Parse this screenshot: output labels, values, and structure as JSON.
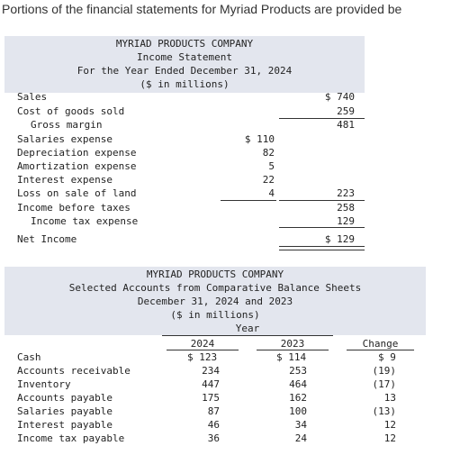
{
  "intro": "Portions of the financial statements for Myriad Products are provided be",
  "income": {
    "header": [
      "MYRIAD PRODUCTS COMPANY",
      "Income Statement",
      "For the Year Ended December 31, 2024",
      "($ in millions)"
    ],
    "rows": [
      {
        "label": "Sales",
        "col1": "",
        "col2": "$ 740"
      },
      {
        "label": "Cost of goods sold",
        "col1": "",
        "col2": "259"
      },
      {
        "label": "Gross margin",
        "col1": "",
        "col2": "481"
      },
      {
        "label": "Salaries expense",
        "col1": "$ 110",
        "col2": ""
      },
      {
        "label": "Depreciation expense",
        "col1": "82",
        "col2": ""
      },
      {
        "label": "Amortization expense",
        "col1": "5",
        "col2": ""
      },
      {
        "label": "Interest expense",
        "col1": "22",
        "col2": ""
      },
      {
        "label": "Loss on sale of land",
        "col1": "4",
        "col2": "223"
      },
      {
        "label": "Income before taxes",
        "col1": "",
        "col2": "258"
      },
      {
        "label": "Income tax expense",
        "col1": "",
        "col2": "129"
      },
      {
        "label": "Net Income",
        "col1": "",
        "col2": "$ 129"
      }
    ]
  },
  "balance": {
    "header": [
      "MYRIAD PRODUCTS COMPANY",
      "Selected Accounts from Comparative Balance Sheets",
      "December 31, 2024 and 2023",
      "($ in millions)",
      "Year"
    ],
    "columns": [
      "2024",
      "2023",
      "Change"
    ],
    "rows": [
      {
        "label": "Cash",
        "y2024": "$ 123",
        "y2023": "$ 114",
        "change": "$ 9"
      },
      {
        "label": "Accounts receivable",
        "y2024": "234",
        "y2023": "253",
        "change": "(19)"
      },
      {
        "label": "Inventory",
        "y2024": "447",
        "y2023": "464",
        "change": "(17)"
      },
      {
        "label": "Accounts payable",
        "y2024": "175",
        "y2023": "162",
        "change": "13"
      },
      {
        "label": "Salaries payable",
        "y2024": "87",
        "y2023": "100",
        "change": "(13)"
      },
      {
        "label": "Interest payable",
        "y2024": "46",
        "y2023": "34",
        "change": "12"
      },
      {
        "label": "Income tax payable",
        "y2024": "36",
        "y2023": "24",
        "change": "12"
      }
    ]
  }
}
